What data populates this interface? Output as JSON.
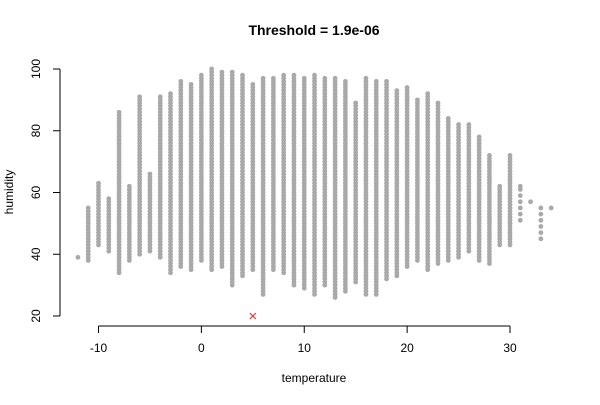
{
  "chart_data": {
    "type": "scatter",
    "title": "Threshold = 1.9e-06",
    "xlabel": "temperature",
    "ylabel": "humidity",
    "xlim": [
      -13,
      35
    ],
    "ylim": [
      20,
      100
    ],
    "x_ticks": [
      -10,
      0,
      10,
      20,
      30
    ],
    "y_ticks": [
      20,
      40,
      60,
      80,
      100
    ],
    "grid": false,
    "legend": "none",
    "colors": {
      "points": "#A9A9A9",
      "outlier": "#E8362F",
      "axis": "#000000"
    },
    "series": [
      {
        "marker": "circle",
        "color": "#A9A9A9",
        "columns": [
          {
            "x": -12,
            "min": 39,
            "max": 39
          },
          {
            "x": -11,
            "min": 38,
            "max": 55
          },
          {
            "x": -10,
            "min": 43,
            "max": 63
          },
          {
            "x": -9,
            "min": 41,
            "max": 58
          },
          {
            "x": -8,
            "min": 34,
            "max": 86
          },
          {
            "x": -7,
            "min": 38,
            "max": 62
          },
          {
            "x": -6,
            "min": 40,
            "max": 91
          },
          {
            "x": -5,
            "min": 41,
            "max": 66
          },
          {
            "x": -4,
            "min": 39,
            "max": 91
          },
          {
            "x": -3,
            "min": 34,
            "max": 92
          },
          {
            "x": -2,
            "min": 36,
            "max": 96
          },
          {
            "x": -1,
            "min": 35,
            "max": 95
          },
          {
            "x": 0,
            "min": 38,
            "max": 98
          },
          {
            "x": 1,
            "min": 35,
            "max": 100
          },
          {
            "x": 2,
            "min": 36,
            "max": 99
          },
          {
            "x": 3,
            "min": 30,
            "max": 99
          },
          {
            "x": 4,
            "min": 33,
            "max": 98
          },
          {
            "x": 5,
            "min": 35,
            "max": 95
          },
          {
            "x": 6,
            "min": 27,
            "max": 97
          },
          {
            "x": 7,
            "min": 35,
            "max": 97
          },
          {
            "x": 8,
            "min": 34,
            "max": 98
          },
          {
            "x": 9,
            "min": 30,
            "max": 98
          },
          {
            "x": 10,
            "min": 29,
            "max": 97
          },
          {
            "x": 11,
            "min": 27,
            "max": 98
          },
          {
            "x": 12,
            "min": 30,
            "max": 97
          },
          {
            "x": 13,
            "min": 26,
            "max": 97
          },
          {
            "x": 14,
            "min": 28,
            "max": 96
          },
          {
            "x": 15,
            "min": 31,
            "max": 89
          },
          {
            "x": 16,
            "min": 27,
            "max": 97
          },
          {
            "x": 17,
            "min": 27,
            "max": 96
          },
          {
            "x": 18,
            "min": 32,
            "max": 96
          },
          {
            "x": 19,
            "min": 33,
            "max": 93
          },
          {
            "x": 20,
            "min": 36,
            "max": 94
          },
          {
            "x": 21,
            "min": 38,
            "max": 90
          },
          {
            "x": 22,
            "min": 35,
            "max": 92
          },
          {
            "x": 23,
            "min": 37,
            "max": 89
          },
          {
            "x": 24,
            "min": 38,
            "max": 84
          },
          {
            "x": 25,
            "min": 39,
            "max": 82
          },
          {
            "x": 26,
            "min": 41,
            "max": 82
          },
          {
            "x": 27,
            "min": 38,
            "max": 78
          },
          {
            "x": 28,
            "min": 37,
            "max": 72
          },
          {
            "x": 29,
            "min": 43,
            "max": 62
          },
          {
            "x": 30,
            "min": 43,
            "max": 72
          },
          {
            "x": 31,
            "min": 51,
            "max": 62
          },
          {
            "x": 32,
            "min": 57,
            "max": 57
          },
          {
            "x": 33,
            "min": 45,
            "max": 55
          },
          {
            "x": 34,
            "min": 55,
            "max": 55
          }
        ]
      },
      {
        "marker": "x",
        "color": "#E8362F",
        "points": [
          {
            "x": 5,
            "y": 20
          }
        ]
      }
    ]
  }
}
